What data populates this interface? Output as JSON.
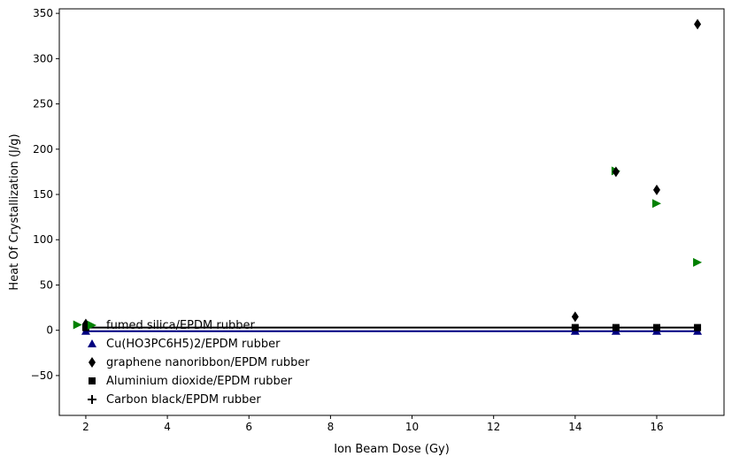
{
  "chart_data": {
    "type": "scatter",
    "title": "",
    "xlabel": "Ion Beam Dose (Gy)",
    "ylabel": "Heat Of Crystallization (J/g)",
    "xlim": [
      1.35,
      17.65
    ],
    "ylim": [
      -94,
      355
    ],
    "xticks": [
      2,
      4,
      6,
      8,
      10,
      12,
      14,
      16
    ],
    "yticks": [
      -50,
      0,
      50,
      100,
      150,
      200,
      250,
      300,
      350
    ],
    "grid": false,
    "legend_position": "lower-left",
    "series": [
      {
        "name": "fumed silica/EPDM rubber",
        "marker": "triangle-right",
        "color": "#008000",
        "x": [
          1.8,
          15,
          16,
          17
        ],
        "y": [
          6,
          176,
          140,
          75
        ]
      },
      {
        "name": "Cu(HO3PC6H5)2/EPDM rubber",
        "marker": "triangle-up",
        "color": "#000080",
        "x": [
          2,
          14,
          15,
          16,
          17
        ],
        "y": [
          -1,
          -1,
          -1,
          -1,
          -1
        ],
        "fit_line": {
          "x": [
            2,
            17
          ],
          "y": [
            -1,
            -1
          ],
          "color": "#000080"
        }
      },
      {
        "name": "graphene nanoribbon/EPDM rubber",
        "marker": "thin-diamond",
        "color": "#000000",
        "x": [
          2,
          14,
          15,
          16,
          17
        ],
        "y": [
          7,
          15,
          175,
          155,
          338
        ]
      },
      {
        "name": "Aluminium dioxide/EPDM rubber",
        "marker": "square",
        "color": "#000000",
        "x": [
          2,
          14,
          15,
          16,
          17
        ],
        "y": [
          3,
          3,
          3,
          3,
          3
        ],
        "fit_line": {
          "x": [
            2,
            17
          ],
          "y": [
            3,
            3
          ],
          "color": "#000000"
        }
      },
      {
        "name": "Carbon black/EPDM rubber",
        "marker": "plus",
        "color": "#000000",
        "x": [],
        "y": []
      }
    ]
  }
}
